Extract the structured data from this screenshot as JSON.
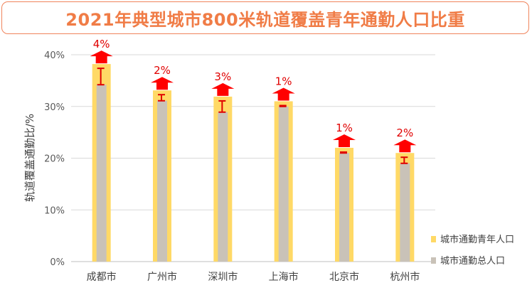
{
  "title": "2021年典型城市800米轨道覆盖青年通勤人口比重",
  "chart_data": {
    "type": "bar",
    "title": "2021年典型城市800米轨道覆盖青年通勤人口比重",
    "categories": [
      "成都市",
      "广州市",
      "深圳市",
      "上海市",
      "北京市",
      "杭州市"
    ],
    "series": [
      {
        "name": "城市通勤青年人口",
        "values": [
          38.2,
          33.1,
          31.9,
          31.0,
          22.0,
          21.0
        ],
        "color": "#ffd966"
      },
      {
        "name": "城市通勤总人口",
        "values": [
          34.2,
          31.1,
          28.9,
          30.0,
          21.0,
          19.0
        ],
        "color": "#c9c2b8"
      }
    ],
    "differences": [
      "4%",
      "2%",
      "3%",
      "1%",
      "1%",
      "2%"
    ],
    "ylabel": "轨道覆盖通勤比/%",
    "xlabel": "",
    "ylim": [
      0,
      40
    ],
    "yticks": [
      "0%",
      "10%",
      "20%",
      "30%",
      "40%"
    ],
    "grid": true,
    "legend": "bottom-right",
    "marker_color": "#e00000"
  }
}
